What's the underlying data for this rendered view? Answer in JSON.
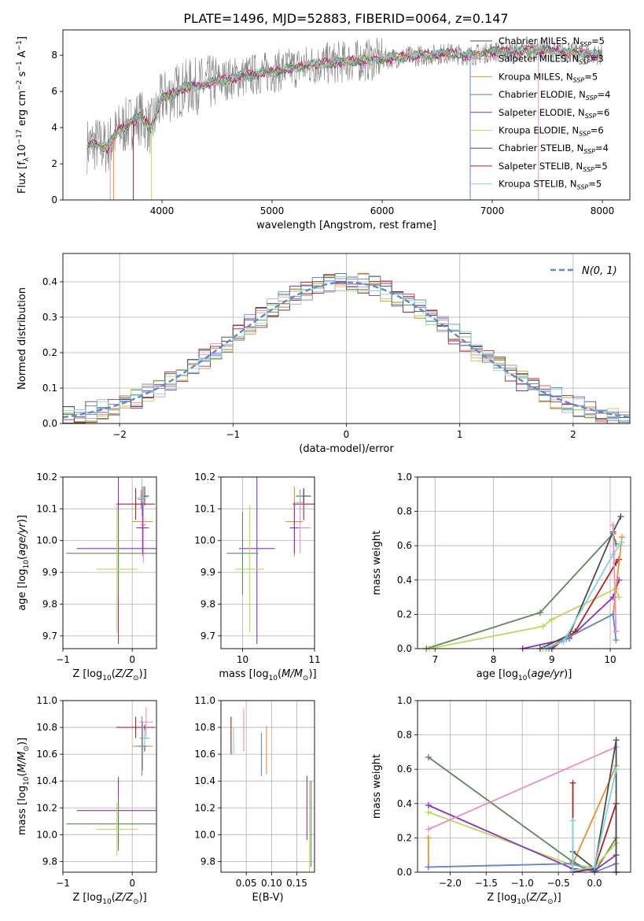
{
  "figure": {
    "title": "PLATE=1496, MJD=52883, FIBERID=0064, z=0.147"
  },
  "colors": {
    "series": [
      "#5b8bd6",
      "#f28e2b",
      "#e88fc5",
      "#b22222",
      "#8e30c1",
      "#bada55",
      "#4d4d4d",
      "#5a8a5a",
      "#7fd6e0"
    ],
    "data": "#808080",
    "grid": "#b0b0b0"
  },
  "chart_data": [
    {
      "id": "spectrum",
      "type": "line",
      "xlabel": "wavelength [Angstrom, rest frame]",
      "ylabel": "Flux [f_λ 10^-17 erg cm^-2 s^-1 A^-1]",
      "xlim": [
        3100,
        8250
      ],
      "ylim": [
        0,
        9.4
      ],
      "xticks": [
        4000,
        5000,
        6000,
        7000,
        8000
      ],
      "yticks": [
        0,
        2,
        4,
        6,
        8
      ],
      "grid": false,
      "legend_position": "top-right",
      "legend": [
        {
          "label": "Chabrier MILES, N",
          "sub": "SSP",
          "val": "=5"
        },
        {
          "label": "Salpeter MILES, N",
          "sub": "SSP",
          "val": "=3"
        },
        {
          "label": "Kroupa MILES, N",
          "sub": "SSP",
          "val": "=5"
        },
        {
          "label": "Chabrier ELODIE, N",
          "sub": "SSP",
          "val": "=4"
        },
        {
          "label": "Salpeter ELODIE, N",
          "sub": "SSP",
          "val": "=6"
        },
        {
          "label": "Kroupa ELODIE, N",
          "sub": "SSP",
          "val": "=6"
        },
        {
          "label": "Chabrier STELIB, N",
          "sub": "SSP",
          "val": "=4"
        },
        {
          "label": "Salpeter STELIB, N",
          "sub": "SSP",
          "val": "=5"
        },
        {
          "label": "Kroupa STELIB, N",
          "sub": "SSP",
          "val": "=5"
        }
      ],
      "legend_colors": [
        "#4d4d4d",
        "#e88fc5",
        "#f28e2b",
        "#5a8a5a",
        "#8e30c1",
        "#bada55",
        "#4d4d4d",
        "#b22222",
        "#7fd6e0"
      ],
      "continuum": {
        "x": [
          3320,
          3400,
          3500,
          3600,
          3700,
          3800,
          3900,
          4000,
          4200,
          4400,
          4600,
          4800,
          5000,
          5200,
          5400,
          5600,
          5800,
          6000,
          6200,
          6400,
          6600,
          6800,
          7000,
          7200,
          7400,
          7600,
          7800,
          8000
        ],
        "y": [
          3.0,
          3.1,
          2.9,
          3.8,
          4.2,
          4.6,
          4.0,
          5.6,
          6.2,
          6.4,
          6.7,
          6.9,
          7.1,
          7.3,
          7.5,
          7.6,
          7.7,
          7.8,
          7.9,
          8.0,
          8.1,
          8.0,
          8.2,
          8.2,
          8.3,
          8.2,
          8.1,
          8.0
        ]
      }
    },
    {
      "id": "residuals",
      "type": "bar",
      "xlabel": "(data-model)/error",
      "ylabel": "Normed distribution",
      "xlim": [
        -2.5,
        2.5
      ],
      "ylim": [
        0,
        0.48
      ],
      "xticks": [
        -2,
        -1,
        0,
        1,
        2
      ],
      "yticks": [
        0.0,
        0.1,
        0.2,
        0.3,
        0.4
      ],
      "grid": true,
      "legend_position": "top-right",
      "legend_label": "N(0, 1)",
      "bin_width": 0.1
    },
    {
      "id": "age_vs_Z",
      "type": "scatter",
      "xlabel": "Z [log10(Z/Z☉)]",
      "ylabel": "age [log10(age/yr)]",
      "xlim": [
        -1.0,
        0.35
      ],
      "ylim": [
        9.66,
        10.2
      ],
      "xticks": [
        -1,
        0
      ],
      "yticks": [
        9.7,
        9.8,
        9.9,
        10.0,
        10.1,
        10.2
      ],
      "grid": true,
      "points": [
        {
          "x": 0.18,
          "y": 10.14,
          "xerr": 0.06,
          "yerr": 0.03,
          "c": 6
        },
        {
          "x": 0.13,
          "y": 10.13,
          "xerr": 0.05,
          "yerr": 0.03,
          "c": 0
        },
        {
          "x": 0.14,
          "y": 10.135,
          "xerr": 0.08,
          "yerr": 0.06,
          "c": 8
        },
        {
          "x": 0.05,
          "y": 10.115,
          "xerr": 0.28,
          "yerr": 0.05,
          "c": 3
        },
        {
          "x": 0.15,
          "y": 10.06,
          "xerr": 0.15,
          "yerr": 0.11,
          "c": 1
        },
        {
          "x": 0.16,
          "y": 10.05,
          "xerr": 0.04,
          "yerr": 0.12,
          "c": 2
        },
        {
          "x": 0.15,
          "y": 10.04,
          "xerr": 0.09,
          "yerr": 0.08,
          "c": 4
        },
        {
          "x": -0.2,
          "y": 9.975,
          "xerr": 0.6,
          "yerr": 0.3,
          "c": 4
        },
        {
          "x": -0.2,
          "y": 9.96,
          "xerr": 0.75,
          "yerr": 0.13,
          "c": 7
        },
        {
          "x": -0.22,
          "y": 9.91,
          "xerr": 0.3,
          "yerr": 0.2,
          "c": 5
        }
      ]
    },
    {
      "id": "age_vs_mass",
      "type": "scatter",
      "xlabel": "mass [log10(M/M☉)]",
      "ylabel": "",
      "xlim": [
        9.7,
        11.0
      ],
      "ylim": [
        9.66,
        10.2
      ],
      "xticks": [
        10,
        11
      ],
      "yticks": [
        9.7,
        9.8,
        9.9,
        10.0,
        10.1,
        10.2
      ],
      "grid": true,
      "points": [
        {
          "x": 10.85,
          "y": 10.14,
          "xerr": 0.1,
          "yerr": 0.02,
          "c": 6
        },
        {
          "x": 10.8,
          "y": 10.14,
          "xerr": 0.06,
          "yerr": 0.02,
          "c": 0
        },
        {
          "x": 10.8,
          "y": 10.12,
          "xerr": 0.06,
          "yerr": 0.03,
          "c": 8
        },
        {
          "x": 10.85,
          "y": 10.115,
          "xerr": 0.15,
          "yerr": 0.05,
          "c": 3
        },
        {
          "x": 10.72,
          "y": 10.06,
          "xerr": 0.12,
          "yerr": 0.11,
          "c": 1
        },
        {
          "x": 10.8,
          "y": 10.04,
          "xerr": 0.15,
          "yerr": 0.08,
          "c": 2
        },
        {
          "x": 10.72,
          "y": 10.04,
          "xerr": 0.06,
          "yerr": 0.08,
          "c": 4
        },
        {
          "x": 10.2,
          "y": 9.975,
          "xerr": 0.25,
          "yerr": 0.3,
          "c": 4
        },
        {
          "x": 10.0,
          "y": 9.96,
          "xerr": 0.22,
          "yerr": 0.13,
          "c": 7
        },
        {
          "x": 10.1,
          "y": 9.91,
          "xerr": 0.2,
          "yerr": 0.2,
          "c": 5
        }
      ]
    },
    {
      "id": "weight_vs_age",
      "type": "line",
      "xlabel": "age [log10(age/yr)]",
      "ylabel": "mass weight",
      "xlim": [
        6.7,
        10.35
      ],
      "ylim": [
        0,
        1.0
      ],
      "xticks": [
        7,
        8,
        9,
        10
      ],
      "yticks": [
        0.0,
        0.2,
        0.4,
        0.6,
        0.8,
        1.0
      ],
      "grid": true,
      "series": [
        {
          "c": 7,
          "x": [
            6.85,
            8.8,
            10.05,
            10.1
          ],
          "y": [
            0.0,
            0.21,
            0.67,
            0.61
          ]
        },
        {
          "c": 5,
          "x": [
            6.9,
            8.85,
            9.0,
            10.1,
            10.15
          ],
          "y": [
            0.0,
            0.13,
            0.17,
            0.35,
            0.3
          ]
        },
        {
          "c": 4,
          "x": [
            8.5,
            9.3,
            10.05,
            10.15
          ],
          "y": [
            0.0,
            0.06,
            0.3,
            0.4
          ]
        },
        {
          "c": 6,
          "x": [
            8.8,
            9.3,
            10.05,
            10.18
          ],
          "y": [
            0.0,
            0.08,
            0.68,
            0.77
          ]
        },
        {
          "c": 3,
          "x": [
            9.0,
            9.4,
            10.1,
            10.15
          ],
          "y": [
            0.0,
            0.1,
            0.5,
            0.52
          ]
        },
        {
          "c": 1,
          "x": [
            8.9,
            9.3,
            10.05,
            10.2
          ],
          "y": [
            0.0,
            0.07,
            0.2,
            0.65
          ]
        },
        {
          "c": 0,
          "x": [
            8.95,
            9.25,
            10.05,
            10.1
          ],
          "y": [
            0.0,
            0.06,
            0.2,
            0.05
          ]
        },
        {
          "c": 8,
          "x": [
            8.85,
            9.2,
            10.05,
            10.2
          ],
          "y": [
            0.0,
            0.04,
            0.55,
            0.62
          ]
        },
        {
          "c": 2,
          "x": [
            10.05,
            10.1
          ],
          "y": [
            0.72,
            0.1
          ]
        }
      ]
    },
    {
      "id": "mass_vs_Z",
      "type": "scatter",
      "xlabel": "Z [log10(Z/Z☉)]",
      "ylabel": "mass [log10(M/M☉)]",
      "xlim": [
        -1.0,
        0.35
      ],
      "ylim": [
        9.72,
        11.0
      ],
      "xticks": [
        -1,
        0
      ],
      "yticks": [
        9.8,
        10.0,
        10.2,
        10.4,
        10.6,
        10.8,
        11.0
      ],
      "grid": true,
      "points": [
        {
          "x": 0.05,
          "y": 10.8,
          "xerr": 0.28,
          "yerr": 0.08,
          "c": 3
        },
        {
          "x": 0.2,
          "y": 10.84,
          "xerr": 0.1,
          "yerr": 0.11,
          "c": 2
        },
        {
          "x": 0.18,
          "y": 10.72,
          "xerr": 0.06,
          "yerr": 0.1,
          "c": 6
        },
        {
          "x": 0.18,
          "y": 10.72,
          "xerr": 0.08,
          "yerr": 0.06,
          "c": 8
        },
        {
          "x": 0.15,
          "y": 10.66,
          "xerr": 0.15,
          "yerr": 0.18,
          "c": 1
        },
        {
          "x": 0.14,
          "y": 10.66,
          "xerr": 0.08,
          "yerr": 0.22,
          "c": 0
        },
        {
          "x": -0.2,
          "y": 10.18,
          "xerr": 0.6,
          "yerr": 0.25,
          "c": 4
        },
        {
          "x": -0.2,
          "y": 10.08,
          "xerr": 0.75,
          "yerr": 0.2,
          "c": 7
        },
        {
          "x": -0.22,
          "y": 10.04,
          "xerr": 0.3,
          "yerr": 0.2,
          "c": 5
        }
      ]
    },
    {
      "id": "mass_vs_ebv",
      "type": "scatter",
      "xlabel": "E(B-V)",
      "ylabel": "",
      "xlim": [
        0.0,
        0.185
      ],
      "ylim": [
        9.72,
        11.0
      ],
      "xticks": [
        0.05,
        0.1,
        0.15
      ],
      "xticklabels": [
        "0.05",
        "0.10",
        "0.15"
      ],
      "yticks": [
        9.8,
        10.0,
        10.2,
        10.4,
        10.6,
        10.8,
        11.0
      ],
      "grid": true,
      "points": [
        {
          "x": 0.02,
          "y": 10.74,
          "yerr": 0.14,
          "c": 3
        },
        {
          "x": 0.025,
          "y": 10.7,
          "yerr": 0.1,
          "c": 8
        },
        {
          "x": 0.045,
          "y": 10.78,
          "yerr": 0.16,
          "c": 2
        },
        {
          "x": 0.08,
          "y": 10.6,
          "yerr": 0.16,
          "c": 0
        },
        {
          "x": 0.09,
          "y": 10.63,
          "yerr": 0.18,
          "c": 1
        },
        {
          "x": 0.17,
          "y": 10.2,
          "yerr": 0.24,
          "c": 4
        },
        {
          "x": 0.175,
          "y": 10.05,
          "yerr": 0.35,
          "c": 5
        },
        {
          "x": 0.178,
          "y": 10.08,
          "yerr": 0.32,
          "c": 7
        }
      ]
    },
    {
      "id": "weight_vs_Z",
      "type": "line",
      "xlabel": "Z [log10(Z/Z☉)]",
      "ylabel": "mass weight",
      "xlim": [
        -2.45,
        0.5
      ],
      "ylim": [
        0,
        1.0
      ],
      "xticks": [
        -2.0,
        -1.5,
        -1.0,
        -0.5,
        0.0
      ],
      "xticklabels": [
        "−2.0",
        "−1.5",
        "−1.0",
        "−0.5",
        "0.0"
      ],
      "yticks": [
        0.0,
        0.2,
        0.4,
        0.6,
        0.8,
        1.0
      ],
      "grid": true,
      "series": [
        {
          "c": 7,
          "x": [
            -2.3,
            -0.3,
            0.0,
            0.3
          ],
          "y": [
            0.67,
            0.06,
            0.0,
            0.2
          ]
        },
        {
          "c": 5,
          "x": [
            -2.3,
            -0.3,
            0.0,
            0.3
          ],
          "y": [
            0.35,
            0.04,
            0.03,
            0.17
          ]
        },
        {
          "c": 4,
          "x": [
            -2.3,
            -0.3,
            0.0,
            0.3
          ],
          "y": [
            0.39,
            0.02,
            0.01,
            0.1
          ]
        },
        {
          "c": 2,
          "x": [
            -2.3,
            0.3
          ],
          "y": [
            0.25,
            0.73
          ]
        },
        {
          "c": 1,
          "x": [
            -2.3,
            -2.3,
            -0.3,
            0.3
          ],
          "y": [
            0.2,
            0.03,
            0.05,
            0.62
          ]
        },
        {
          "c": 0,
          "x": [
            -2.3,
            -0.3,
            0.0,
            0.3
          ],
          "y": [
            0.03,
            0.05,
            0.0,
            0.05
          ]
        },
        {
          "c": 3,
          "x": [
            -0.3,
            -0.3,
            0.0,
            0.3,
            0.3
          ],
          "y": [
            0.52,
            0.0,
            0.02,
            0.4,
            0.0
          ]
        },
        {
          "c": 6,
          "x": [
            -0.3,
            0.0,
            0.3,
            0.3
          ],
          "y": [
            0.12,
            0.02,
            0.77,
            0.0
          ]
        },
        {
          "c": 8,
          "x": [
            -0.3,
            -0.3,
            0.0,
            0.3
          ],
          "y": [
            0.3,
            0.01,
            0.03,
            0.6
          ]
        }
      ]
    }
  ]
}
